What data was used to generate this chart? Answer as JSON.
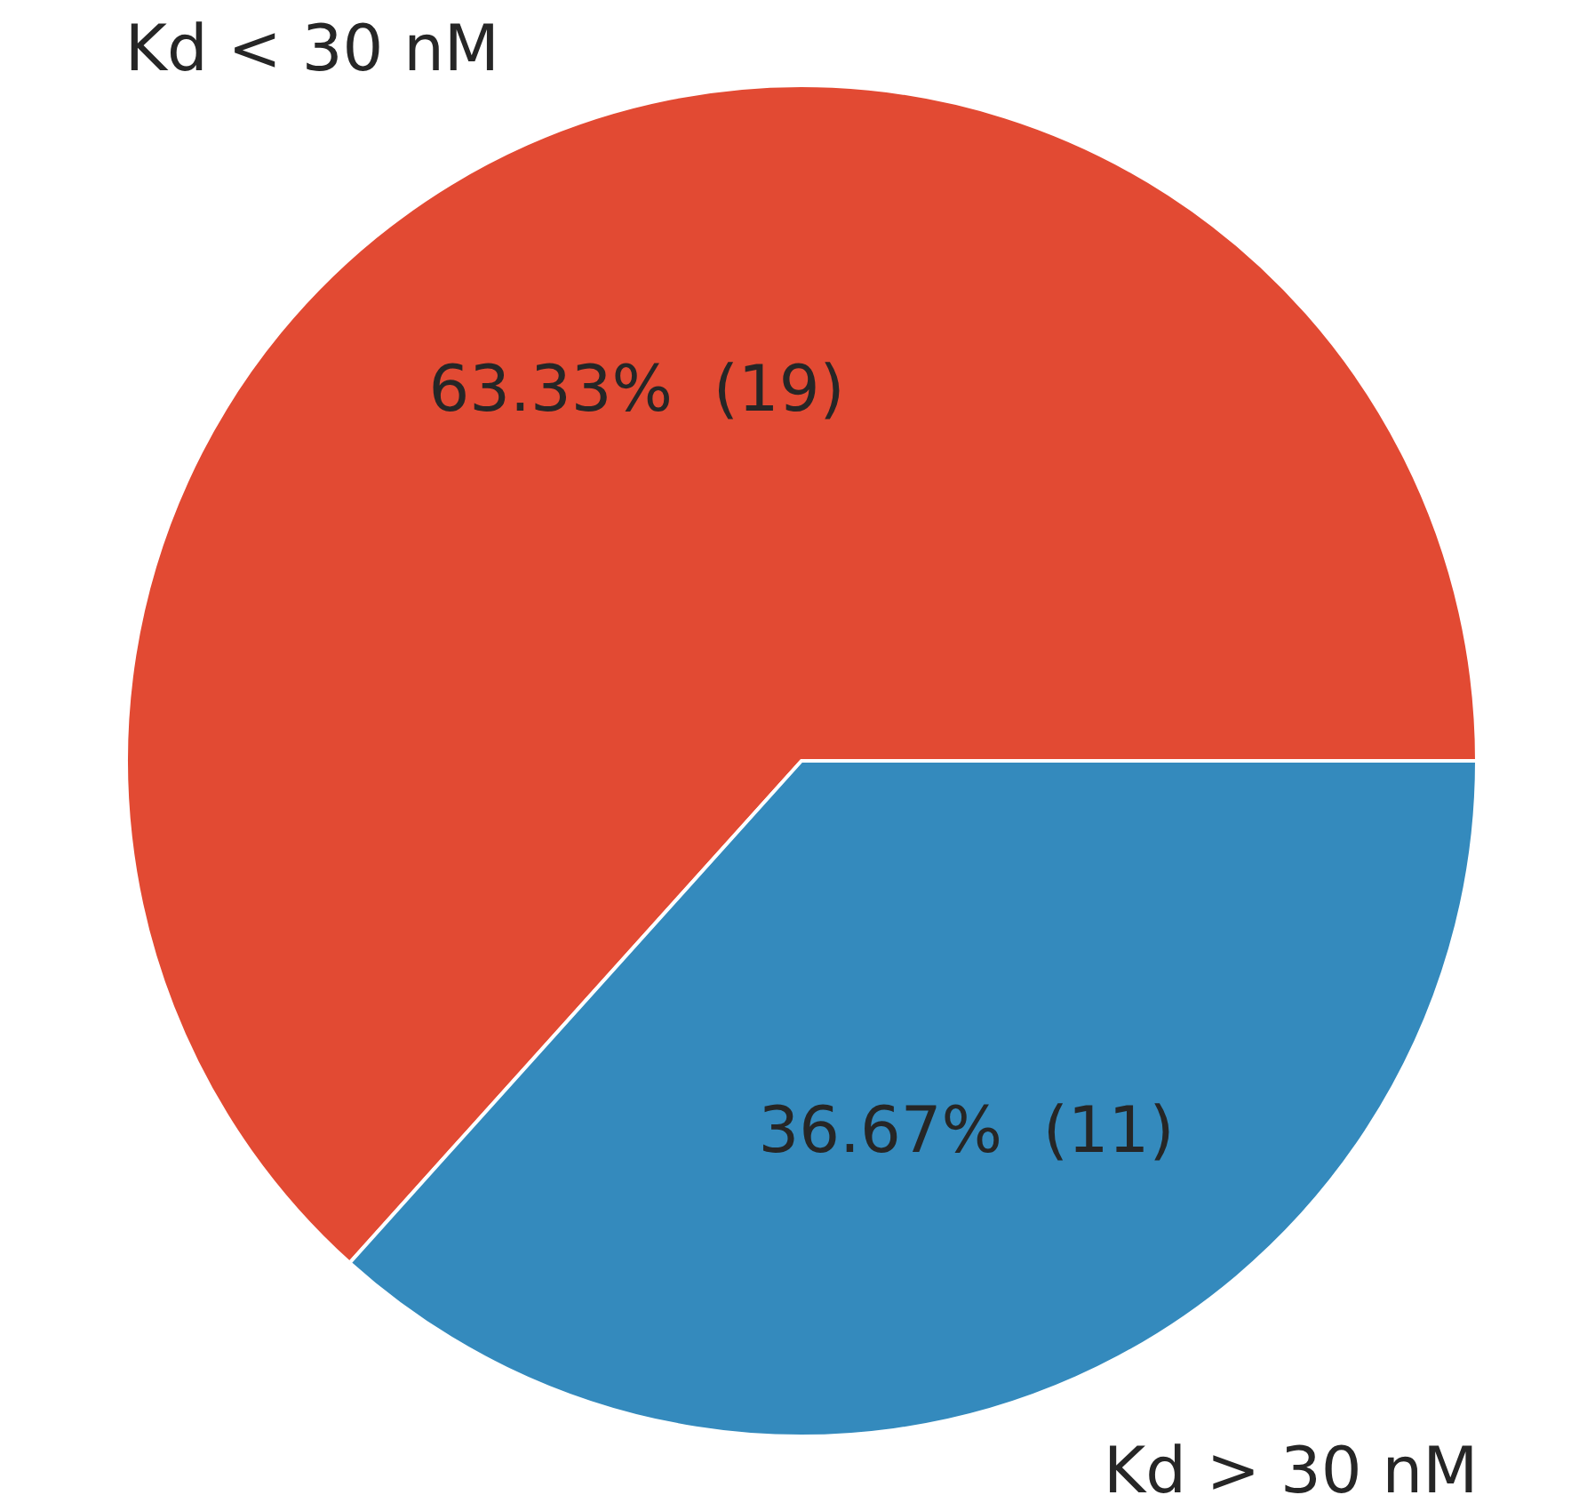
{
  "chart_data": {
    "type": "pie",
    "categories": [
      "Kd < 30 nM",
      "Kd > 30 nM"
    ],
    "values": [
      19,
      11
    ],
    "colors": [
      "#e24a33",
      "#348abd"
    ],
    "value_labels": [
      "63.33%  (19)",
      "36.67%  (11)"
    ]
  }
}
